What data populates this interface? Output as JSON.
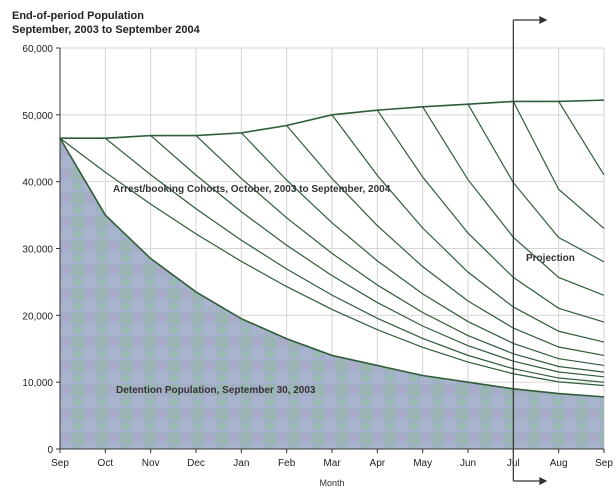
{
  "chart_data": {
    "type": "area",
    "title_line1": "End-of-period Population",
    "title_line2": "September, 2003 to September 2004",
    "xlabel": "Month",
    "ylabel": "",
    "categories": [
      "Sep",
      "Oct",
      "Nov",
      "Dec",
      "Jan",
      "Feb",
      "Mar",
      "Apr",
      "May",
      "Jun",
      "Jul",
      "Aug",
      "Sep"
    ],
    "ylim": [
      0,
      60000
    ],
    "yticks": [
      0,
      10000,
      20000,
      30000,
      40000,
      50000,
      60000
    ],
    "ytick_labels": [
      "0",
      "10,000",
      "20,000",
      "30,000",
      "40,000",
      "50,000",
      "60,000"
    ],
    "grid": true,
    "projection_start_index": 10,
    "detention_population": [
      46500,
      35000,
      28500,
      23500,
      19500,
      16500,
      14000,
      12500,
      11000,
      10000,
      9000,
      8300,
      7800
    ],
    "total_population": [
      46500,
      46500,
      46900,
      46900,
      47300,
      48400,
      50000,
      50700,
      51200,
      51600,
      52000,
      52000,
      52200
    ],
    "cohort_end_values": [
      9500,
      10000,
      10800,
      11500,
      12500,
      14000,
      16000,
      19000,
      23000,
      28000,
      33000,
      41000
    ],
    "annotations": {
      "cohorts": "Arrest/booking Cohorts, October, 2003 to September, 2004",
      "detention": "Detention Population, September 30, 2003",
      "projection": "Projection"
    },
    "colors": {
      "line": "#2f5d3a",
      "fill_a": "#9aa8c4",
      "fill_b": "#8fc4a8",
      "grid": "#d6d6d6"
    }
  }
}
